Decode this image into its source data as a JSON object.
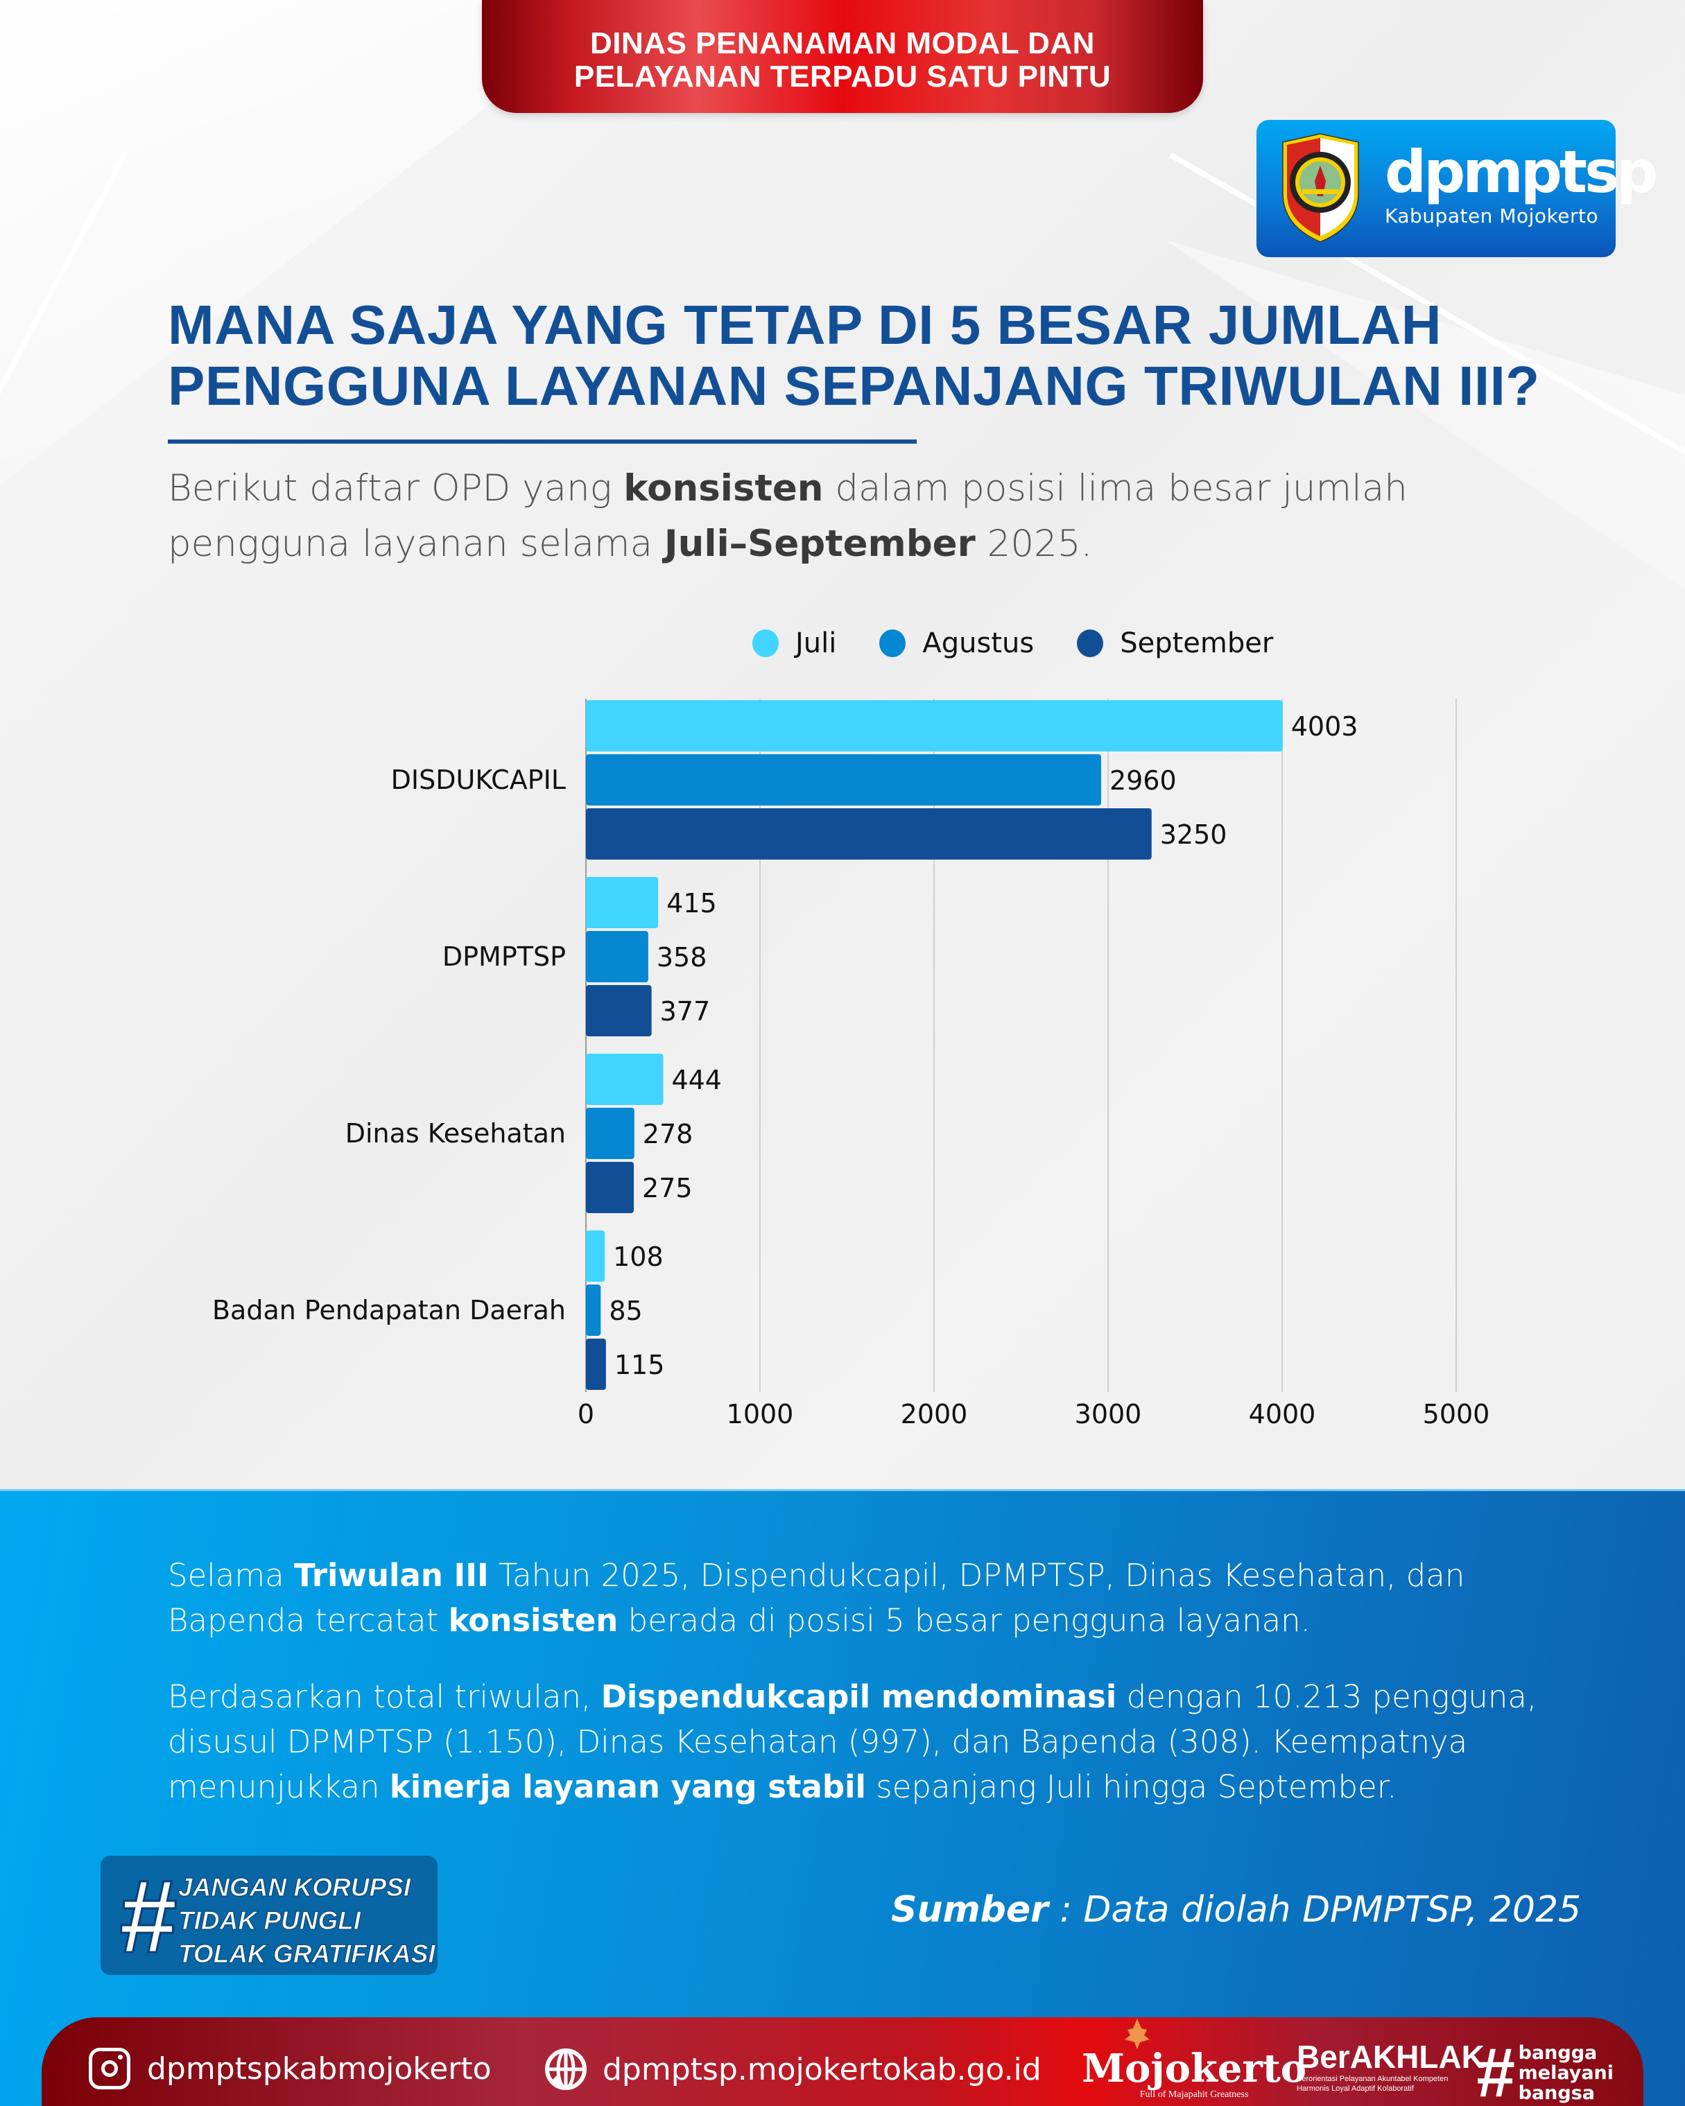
{
  "header": {
    "agency_line1": "DINAS PENANAMAN MODAL DAN",
    "agency_line2": "PELAYANAN TERPADU SATU PINTU"
  },
  "logo": {
    "wordmark": "dpmptsp",
    "region": "Kabupaten Mojokerto",
    "crest_icon": "mojokerto-regency-crest-icon"
  },
  "title": {
    "line1": "MANA SAJA YANG TETAP DI 5 BESAR JUMLAH",
    "line2": "PENGGUNA LAYANAN SEPANJANG TRIWULAN III?"
  },
  "subtitle": {
    "part1": "Berikut daftar OPD yang ",
    "bold1": "konsisten",
    "part2": " dalam posisi lima besar jumlah pengguna layanan selama ",
    "bold2": "Juli–September",
    "part3": " 2025."
  },
  "colors": {
    "juli": "#40d4ff",
    "agustus": "#0587d2",
    "september": "#124e96",
    "title_blue": "#134f97",
    "ribbon_red": "#e60a10",
    "panel_blue": "#0790d9"
  },
  "chart_data": {
    "type": "bar",
    "orientation": "horizontal",
    "title": "",
    "xlabel": "",
    "ylabel": "",
    "categories": [
      "DISDUKCAPIL",
      "DPMPTSP",
      "Dinas Kesehatan",
      "Badan Pendapatan Daerah"
    ],
    "series": [
      {
        "name": "Juli",
        "color": "#40d4ff",
        "values": [
          4003,
          415,
          444,
          108
        ]
      },
      {
        "name": "Agustus",
        "color": "#0587d2",
        "values": [
          2960,
          358,
          278,
          85
        ]
      },
      {
        "name": "September",
        "color": "#124e96",
        "values": [
          3250,
          377,
          275,
          115
        ]
      }
    ],
    "xlim": [
      0,
      5000
    ],
    "xticks": [
      0,
      1000,
      2000,
      3000,
      4000,
      5000
    ],
    "xtick_labels": [
      "0",
      "1000",
      "2000",
      "3000",
      "4000",
      "5000"
    ],
    "grid": true,
    "data_labels": true,
    "legend_position": "top-center"
  },
  "summary": {
    "p1": {
      "t1": "Selama ",
      "b1": "Triwulan III",
      "t2": " Tahun 2025, Dispendukcapil, DPMPTSP, Dinas Kesehatan, dan Bapenda tercatat ",
      "b2": "konsisten",
      "t3": " berada di posisi 5 besar pengguna layanan."
    },
    "p2": {
      "t1": "Berdasarkan total triwulan, ",
      "b1": "Dispendukcapil mendominasi",
      "t2": " dengan 10.213 pengguna, disusul DPMPTSP (1.150), Dinas Kesehatan (997), dan Bapenda (308). Keempatnya menunjukkan ",
      "b2": "kinerja layanan yang stabil",
      "t3": " sepanjang Juli hingga September."
    }
  },
  "campaign": {
    "hash": "#",
    "lines": [
      "JANGAN KORUPSI",
      "TIDAK PUNGLI",
      "TOLAK GRATIFIKASI"
    ]
  },
  "source": {
    "label": "Sumber",
    "text": " : Data diolah DPMPTSP, 2025"
  },
  "footer": {
    "instagram": "dpmptspkabmojokerto",
    "website": "dpmptsp.mojokertokab.go.id",
    "mojokerto_word": "Mojokerto",
    "mojokerto_tagline": "Full of Majapahit Greatness",
    "berakhlak_word": "BerAKHLAK",
    "berakhlak_sub1": "Berorientasi Pelayanan Akuntabel Kompeten",
    "berakhlak_sub2": "Harmonis Loyal Adaptif Kolaboratif",
    "bangga_hash": "#",
    "bangga_lines": [
      "bangga",
      "melayani",
      "bangsa"
    ]
  }
}
